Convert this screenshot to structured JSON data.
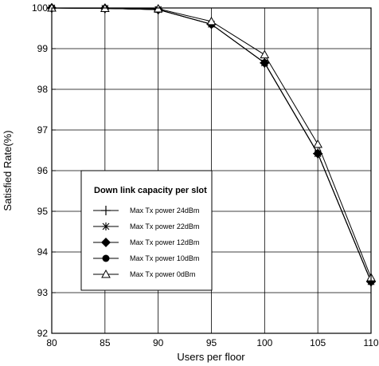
{
  "chart_data": {
    "type": "line",
    "title": "",
    "xlabel": "Users per floor",
    "ylabel": "Satisfied Rate(%)",
    "xlim": [
      80,
      110
    ],
    "ylim": [
      92,
      100
    ],
    "x_ticks": [
      "80",
      "85",
      "90",
      "95",
      "100",
      "105",
      "110"
    ],
    "y_ticks": [
      "92",
      "93",
      "94",
      "95",
      "96",
      "97",
      "98",
      "99",
      "100"
    ],
    "grid": true,
    "legend": {
      "title": "Down link capacity per slot",
      "placement": "lower-left"
    },
    "x": [
      80,
      85,
      90,
      95,
      100,
      105,
      110
    ],
    "series": [
      {
        "name": "Max Tx power 24dBm",
        "marker": "plus",
        "values": [
          100,
          99.99,
          99.96,
          99.6,
          98.65,
          96.42,
          93.27
        ]
      },
      {
        "name": "Max Tx power 22dBm",
        "marker": "asterisk",
        "values": [
          100,
          99.99,
          99.96,
          99.6,
          98.65,
          96.42,
          93.27
        ]
      },
      {
        "name": "Max Tx power 12dBm",
        "marker": "diamond",
        "values": [
          100,
          99.99,
          99.96,
          99.6,
          98.65,
          96.42,
          93.27
        ]
      },
      {
        "name": "Max Tx power 10dBm",
        "marker": "circle",
        "values": [
          100,
          99.99,
          99.96,
          99.6,
          98.65,
          96.42,
          93.27
        ]
      },
      {
        "name": "Max Tx power 0dBm",
        "marker": "triangle",
        "values": [
          100,
          99.99,
          99.98,
          99.67,
          98.85,
          96.65,
          93.37
        ]
      }
    ]
  }
}
